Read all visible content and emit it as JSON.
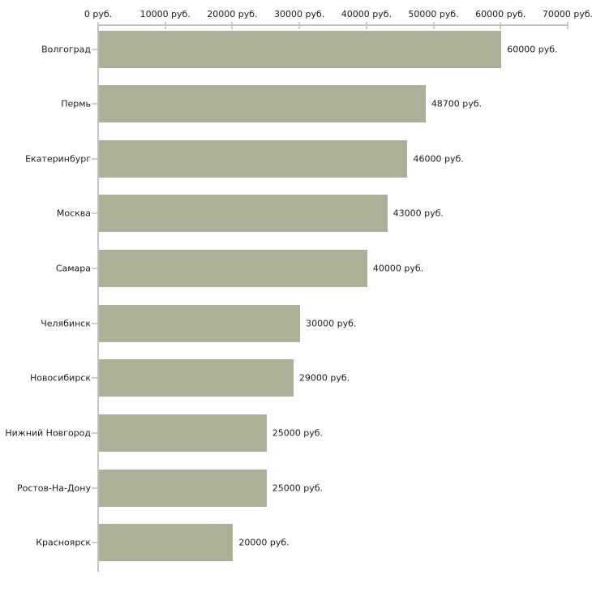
{
  "chart": {
    "unit_suffix": " руб.",
    "colors": {
      "bar": "#ABB096",
      "axis_line": "#C3C3C3",
      "tick_mark": "#D4D4AC",
      "text": "#1C1C1C",
      "background": "#FFFFFF"
    }
  },
  "chart_data": {
    "type": "bar",
    "orientation": "horizontal",
    "title": "",
    "xlabel": "",
    "ylabel": "",
    "grid": false,
    "legend": false,
    "xlim": [
      0,
      70000
    ],
    "x_axis_position": "top",
    "x_tick_values": [
      0,
      10000,
      20000,
      30000,
      40000,
      50000,
      60000,
      70000
    ],
    "x_tick_labels": [
      "0 руб.",
      "10000 руб.",
      "20000 руб.",
      "30000 руб.",
      "40000 руб.",
      "50000 руб.",
      "60000 руб.",
      "70000 руб."
    ],
    "categories": [
      "Волгоград",
      "Пермь",
      "Екатеринбург",
      "Москва",
      "Самара",
      "Челябинск",
      "Новосибирск",
      "Нижний Новгород",
      "Ростов-На-Дону",
      "Красноярск"
    ],
    "values": [
      60000,
      48700,
      46000,
      43000,
      40000,
      30000,
      29000,
      25000,
      25000,
      20000
    ],
    "value_labels": [
      "60000 руб.",
      "48700 руб.",
      "46000 руб.",
      "43000 руб.",
      "40000 руб.",
      "30000 руб.",
      "29000 руб.",
      "25000 руб.",
      "25000 руб.",
      "20000 руб."
    ]
  }
}
